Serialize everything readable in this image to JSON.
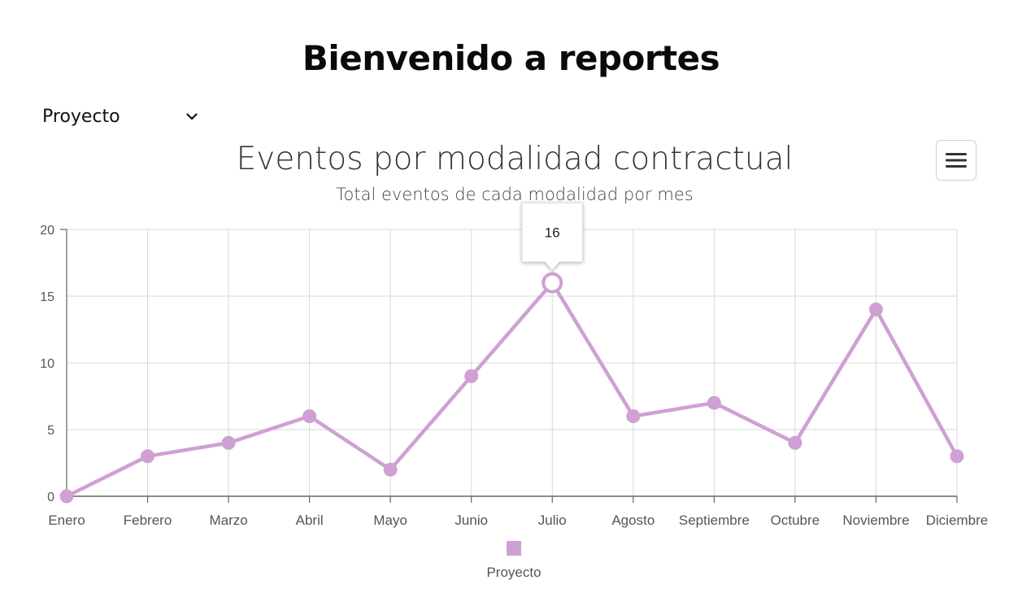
{
  "header": {
    "title": "Bienvenido a reportes"
  },
  "filter": {
    "selected": "Proyecto"
  },
  "menu": {
    "icon": "hamburger-icon"
  },
  "colors": {
    "series": "#cfa0d3",
    "grid": "#d8d8d8",
    "axis": "#666666",
    "text": "#333333"
  },
  "chart_data": {
    "type": "line",
    "title": "Eventos por modalidad contractual",
    "subtitle": "Total eventos de cada modalidad por mes",
    "categories": [
      "Enero",
      "Febrero",
      "Marzo",
      "Abril",
      "Mayo",
      "Junio",
      "Julio",
      "Agosto",
      "Septiembre",
      "Octubre",
      "Noviembre",
      "Diciembre"
    ],
    "series": [
      {
        "name": "Proyecto",
        "values": [
          0,
          3,
          4,
          6,
          2,
          9,
          16,
          6,
          7,
          4,
          14,
          3
        ]
      }
    ],
    "yticks": [
      "0",
      "5",
      "10",
      "15",
      "20"
    ],
    "ylim": [
      0,
      20
    ],
    "grid": true,
    "legend": "bottom-center",
    "tooltip": {
      "category": "Julio",
      "value": "16"
    }
  }
}
